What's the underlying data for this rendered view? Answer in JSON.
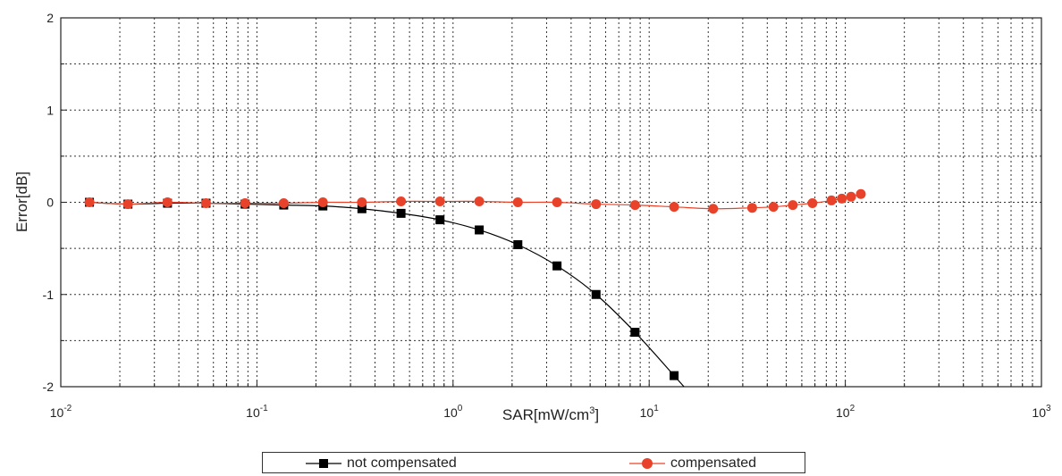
{
  "chart_data": {
    "type": "line",
    "xlabel": "SAR[mW/cm",
    "xlabel_sup": "3",
    "xlabel_end": "]",
    "ylabel": "Error[dB]",
    "x_scale": "log",
    "xlim": [
      0.01,
      1000
    ],
    "ylim": [
      -2,
      2
    ],
    "x_ticks": [
      {
        "value": 0.01,
        "base": "10",
        "exp": "-2"
      },
      {
        "value": 0.1,
        "base": "10",
        "exp": "-1"
      },
      {
        "value": 1,
        "base": "10",
        "exp": "0"
      },
      {
        "value": 10,
        "base": "10",
        "exp": "1"
      },
      {
        "value": 100,
        "base": "10",
        "exp": "2"
      },
      {
        "value": 1000,
        "base": "10",
        "exp": "3"
      }
    ],
    "y_ticks": [
      {
        "value": 2,
        "label": "2"
      },
      {
        "value": 1,
        "label": "1"
      },
      {
        "value": 0,
        "label": "0"
      },
      {
        "value": -1,
        "label": "-1"
      },
      {
        "value": -2,
        "label": "-2"
      }
    ],
    "grid": true,
    "legend_position": "bottom",
    "series": [
      {
        "name": "not compensated",
        "color": "#000000",
        "marker": "square",
        "x": [
          0.014,
          0.022,
          0.035,
          0.055,
          0.087,
          0.137,
          0.217,
          0.343,
          0.543,
          0.858,
          1.36,
          2.14,
          3.39,
          5.36,
          8.47,
          13.4
        ],
        "y": [
          0.0,
          -0.02,
          -0.01,
          -0.01,
          -0.02,
          -0.03,
          -0.04,
          -0.07,
          -0.12,
          -0.19,
          -0.3,
          -0.46,
          -0.69,
          -1.0,
          -1.41,
          -1.88
        ]
      },
      {
        "name": "compensated",
        "color": "#e8432a",
        "marker": "circle",
        "x": [
          0.014,
          0.022,
          0.035,
          0.055,
          0.087,
          0.137,
          0.217,
          0.343,
          0.543,
          0.858,
          1.36,
          2.14,
          3.39,
          5.36,
          8.47,
          13.4,
          21.2,
          33.5,
          43,
          54,
          68,
          85,
          96,
          107,
          120
        ],
        "y": [
          0.0,
          -0.02,
          0.0,
          -0.01,
          -0.01,
          -0.01,
          0.0,
          0.0,
          0.01,
          0.01,
          0.01,
          0.0,
          0.0,
          -0.02,
          -0.03,
          -0.05,
          -0.07,
          -0.06,
          -0.05,
          -0.03,
          -0.01,
          0.02,
          0.04,
          0.06,
          0.09
        ]
      }
    ]
  }
}
